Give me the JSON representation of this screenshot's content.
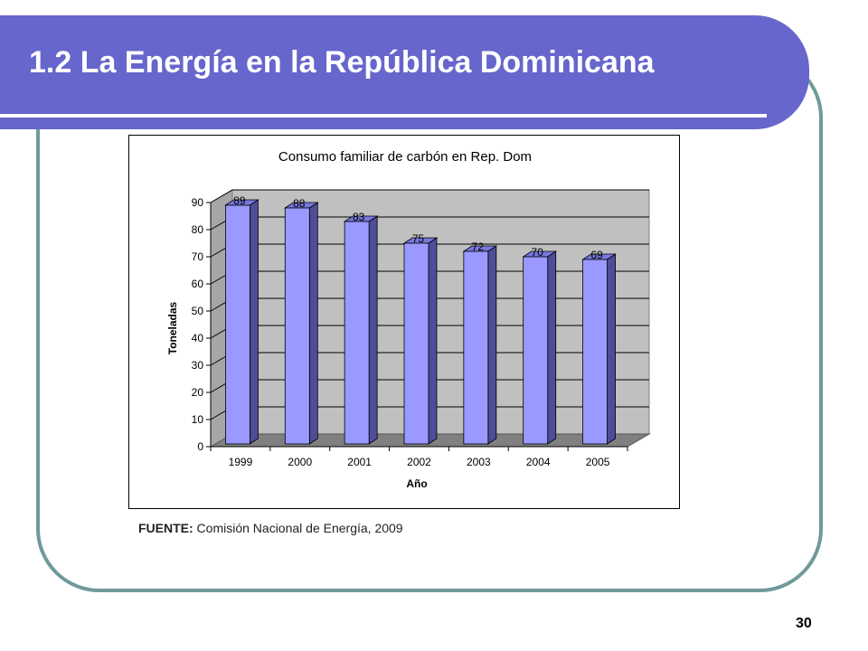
{
  "slide": {
    "title": "1.2 La Energía en la República Dominicana",
    "source_label": "FUENTE:",
    "source_text": " Comisión Nacional de Energía, 2009",
    "page_number": "30"
  },
  "colors": {
    "banner": "#6666cc",
    "frame": "#6f9a9a",
    "bar_front": "#9999ff",
    "bar_side": "#4d4d99",
    "bar_top": "#7777dd",
    "plot_back": "#c0c0c0",
    "plot_floor": "#808080"
  },
  "chart_data": {
    "type": "bar",
    "title": "Consumo familiar de carbón en Rep. Dom",
    "xlabel": "Año",
    "ylabel": "Toneladas",
    "categories": [
      "1999",
      "2000",
      "2001",
      "2002",
      "2003",
      "2004",
      "2005"
    ],
    "values": [
      89,
      88,
      83,
      75,
      72,
      70,
      69
    ],
    "ylim": [
      0,
      90
    ],
    "yticks": [
      0,
      10,
      20,
      30,
      40,
      50,
      60,
      70,
      80,
      90
    ],
    "grid": true,
    "legend": "none",
    "style": "3d-column"
  }
}
